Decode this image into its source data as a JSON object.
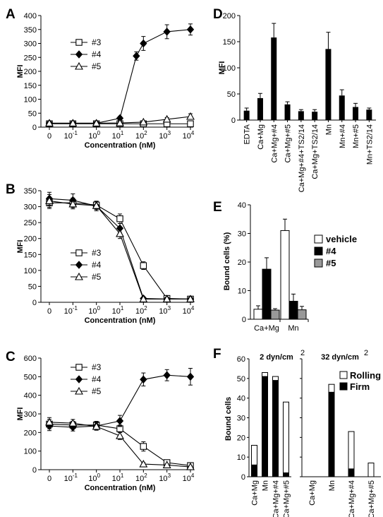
{
  "chart_data": [
    {
      "panel": "A",
      "type": "line",
      "xlabel": "Concentration (nM)",
      "ylabel": "MFI",
      "x_ticks": [
        "0",
        "10-1",
        "100",
        "101",
        "102",
        "103",
        "104"
      ],
      "ylim": [
        0,
        400
      ],
      "y_ticks": [
        0,
        50,
        100,
        150,
        200,
        250,
        300,
        350,
        400
      ],
      "legend": "upper-left",
      "series": [
        {
          "name": "#3",
          "marker": "open-square",
          "x": [
            0,
            1,
            2,
            3,
            4,
            5,
            6
          ],
          "y": [
            12,
            12,
            12,
            12,
            12,
            12,
            12
          ],
          "err": [
            5,
            4,
            4,
            4,
            4,
            5,
            5
          ]
        },
        {
          "name": "#4",
          "marker": "filled-diamond",
          "x": [
            0,
            1,
            2,
            3,
            3.7,
            4,
            5,
            6
          ],
          "y": [
            14,
            14,
            14,
            32,
            255,
            300,
            342,
            350
          ],
          "err": [
            4,
            4,
            4,
            6,
            15,
            25,
            25,
            20
          ]
        },
        {
          "name": "#5",
          "marker": "open-triangle",
          "x": [
            0,
            1,
            2,
            3,
            4,
            5,
            6
          ],
          "y": [
            14,
            14,
            14,
            15,
            18,
            28,
            38
          ],
          "err": [
            4,
            4,
            4,
            4,
            5,
            6,
            10
          ]
        }
      ]
    },
    {
      "panel": "B",
      "type": "line",
      "xlabel": "Concentration (nM)",
      "ylabel": "MFI",
      "x_ticks": [
        "0",
        "10-1",
        "100",
        "101",
        "102",
        "103",
        "104"
      ],
      "ylim": [
        0,
        350
      ],
      "y_ticks": [
        0,
        50,
        100,
        150,
        200,
        250,
        300,
        350
      ],
      "legend": "lower-left",
      "series": [
        {
          "name": "#3",
          "marker": "open-square",
          "x": [
            0,
            1,
            2,
            3,
            4,
            5,
            6
          ],
          "y": [
            312,
            312,
            305,
            262,
            115,
            12,
            10
          ],
          "err": [
            18,
            15,
            12,
            15,
            12,
            4,
            4
          ]
        },
        {
          "name": "#4",
          "marker": "filled-diamond",
          "x": [
            0,
            1,
            2,
            3,
            4,
            5,
            6
          ],
          "y": [
            325,
            320,
            302,
            232,
            12,
            10,
            10
          ],
          "err": [
            20,
            20,
            15,
            15,
            4,
            4,
            4
          ]
        },
        {
          "name": "#5",
          "marker": "open-triangle",
          "x": [
            0,
            1,
            2,
            3,
            4,
            5,
            6
          ],
          "y": [
            318,
            308,
            303,
            215,
            10,
            10,
            10
          ],
          "err": [
            20,
            15,
            12,
            15,
            4,
            4,
            4
          ]
        }
      ]
    },
    {
      "panel": "C",
      "type": "line",
      "xlabel": "Concentration (nM)",
      "ylabel": "MFI",
      "x_ticks": [
        "0",
        "10-1",
        "100",
        "101",
        "102",
        "103",
        "104"
      ],
      "ylim": [
        0,
        600
      ],
      "y_ticks": [
        0,
        100,
        200,
        300,
        400,
        500,
        600
      ],
      "legend": "upper-left",
      "series": [
        {
          "name": "#3",
          "marker": "open-square",
          "x": [
            0,
            1,
            2,
            3,
            4,
            5,
            6
          ],
          "y": [
            245,
            240,
            240,
            220,
            125,
            38,
            22
          ],
          "err": [
            25,
            20,
            20,
            20,
            25,
            10,
            8
          ]
        },
        {
          "name": "#4",
          "marker": "filled-diamond",
          "x": [
            0,
            1,
            2,
            3,
            4,
            5,
            6
          ],
          "y": [
            235,
            228,
            235,
            262,
            485,
            508,
            500
          ],
          "err": [
            25,
            20,
            20,
            30,
            35,
            30,
            45
          ]
        },
        {
          "name": "#5",
          "marker": "open-triangle",
          "x": [
            0,
            1,
            2,
            3,
            4,
            5,
            6
          ],
          "y": [
            255,
            250,
            232,
            182,
            30,
            25,
            15
          ],
          "err": [
            25,
            20,
            20,
            20,
            8,
            6,
            5
          ]
        }
      ]
    },
    {
      "panel": "D",
      "type": "bar",
      "ylabel": "MFI",
      "ylim": [
        0,
        200
      ],
      "y_ticks": [
        0,
        50,
        100,
        150,
        200
      ],
      "categories": [
        "EDTA",
        "Ca+Mg",
        "Ca+Mg+#4",
        "Ca+Mg+#5",
        "Ca+Mg+#4+TS2/14",
        "Ca+Mg+TS2/14",
        "Mn",
        "Mn+#4",
        "Mn+#5",
        "Mn+TS2/14"
      ],
      "values": [
        18,
        42,
        158,
        30,
        17,
        16,
        136,
        47,
        25,
        20
      ],
      "errors": [
        5,
        9,
        27,
        5,
        3,
        4,
        32,
        11,
        7,
        3
      ]
    },
    {
      "panel": "E",
      "type": "bar",
      "ylabel": "Bound cells (%)",
      "ylim": [
        0,
        40
      ],
      "y_ticks": [
        0,
        10,
        20,
        30,
        40
      ],
      "categories": [
        "Ca+Mg",
        "Mn"
      ],
      "legend": "right",
      "series": [
        {
          "name": "vehicle",
          "color": "#ffffff",
          "values": [
            3.5,
            31
          ],
          "errors": [
            1.2,
            4
          ]
        },
        {
          "name": "#4",
          "color": "#000000",
          "values": [
            17.5,
            6.3
          ],
          "errors": [
            4,
            2.5
          ]
        },
        {
          "name": "#5",
          "color": "#999999",
          "values": [
            3.2,
            3.3
          ],
          "errors": [
            0.5,
            1.2
          ]
        }
      ]
    },
    {
      "panel": "F",
      "type": "bar",
      "stacked": true,
      "ylabel": "Bound cells",
      "ylim": [
        0,
        60
      ],
      "y_ticks": [
        0,
        10,
        20,
        30,
        40,
        50,
        60
      ],
      "legend": "top-right",
      "groups": [
        {
          "title": "2 dyn/cm",
          "superscript": "2",
          "categories": [
            "Ca+Mg",
            "Mn",
            "Ca+Mg+#4",
            "Ca+Mg+#5"
          ],
          "firm": [
            6,
            51,
            49,
            2
          ],
          "rolling": [
            10,
            2,
            2,
            36
          ]
        },
        {
          "title": "32 dyn/cm",
          "superscript": "2",
          "categories": [
            "Ca+Mg",
            "Mn",
            "Ca+Mg+#4",
            "Ca+Mg+#5"
          ],
          "firm": [
            0,
            43,
            4,
            0
          ],
          "rolling": [
            0,
            4,
            19,
            7
          ]
        }
      ],
      "series": [
        {
          "name": "Rolling",
          "color": "#ffffff"
        },
        {
          "name": "Firm",
          "color": "#000000"
        }
      ]
    }
  ]
}
